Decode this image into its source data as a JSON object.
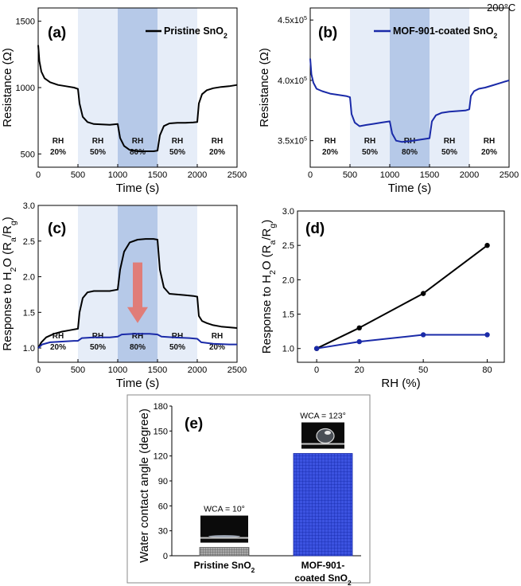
{
  "temperature_note": "200°C",
  "colors": {
    "pristine": "#000000",
    "mof": "#1a2aa8",
    "shade_light": "#e6edf8",
    "shade_dark": "#b6c9e8",
    "arrow": "#e07d78",
    "bar_pristine": "#7a7a7a",
    "bar_mof": "#1f33c9"
  },
  "chart_data": [
    {
      "id": "a",
      "panel_label": "(a)",
      "type": "line",
      "xlabel": "Time (s)",
      "ylabel": "Resistance (Ω)",
      "xlim": [
        0,
        2500
      ],
      "ylim": [
        400,
        1600
      ],
      "xticks": [
        0,
        500,
        1000,
        1500,
        2000,
        2500
      ],
      "yticks": [
        500,
        1000,
        1500
      ],
      "ytick_labels": [
        "500",
        "1000",
        "1500"
      ],
      "legend": "Pristine SnO2",
      "regions": [
        {
          "from": 0,
          "to": 500,
          "shade": "none",
          "label_top": "RH",
          "label_bottom": "20%"
        },
        {
          "from": 500,
          "to": 1000,
          "shade": "light",
          "label_top": "RH",
          "label_bottom": "50%"
        },
        {
          "from": 1000,
          "to": 1500,
          "shade": "dark",
          "label_top": "RH",
          "label_bottom": "80%"
        },
        {
          "from": 1500,
          "to": 2000,
          "shade": "light",
          "label_top": "RH",
          "label_bottom": "50%"
        },
        {
          "from": 2000,
          "to": 2500,
          "shade": "none",
          "label_top": "RH",
          "label_bottom": "20%"
        }
      ],
      "series": [
        {
          "name": "Pristine SnO2",
          "color": "#000000",
          "x": [
            0,
            15,
            40,
            80,
            150,
            250,
            350,
            450,
            500,
            520,
            560,
            620,
            700,
            800,
            900,
            1000,
            1030,
            1080,
            1150,
            1250,
            1350,
            1450,
            1500,
            1530,
            1580,
            1650,
            1750,
            1850,
            1950,
            2000,
            2020,
            2060,
            2120,
            2200,
            2300,
            2400,
            2500
          ],
          "y": [
            1320,
            1200,
            1120,
            1070,
            1040,
            1020,
            1010,
            1000,
            990,
            880,
            780,
            740,
            725,
            722,
            720,
            725,
            620,
            560,
            530,
            520,
            520,
            520,
            525,
            640,
            710,
            730,
            735,
            735,
            738,
            740,
            880,
            950,
            980,
            995,
            1005,
            1010,
            1020
          ]
        }
      ]
    },
    {
      "id": "b",
      "panel_label": "(b)",
      "type": "line",
      "xlabel": "Time (s)",
      "ylabel": "Resistance (Ω)",
      "xlim": [
        0,
        2500
      ],
      "ylim": [
        328000,
        460000
      ],
      "xticks": [
        0,
        500,
        1000,
        1500,
        2000,
        2500
      ],
      "yticks": [
        350000,
        400000,
        450000
      ],
      "ytick_labels": [
        "3.5x10⁵",
        "4.0x10⁵",
        "4.5x10⁵"
      ],
      "legend": "MOF-901-coated SnO2",
      "regions": [
        {
          "from": 0,
          "to": 500,
          "shade": "none",
          "label_top": "RH",
          "label_bottom": "20%"
        },
        {
          "from": 500,
          "to": 1000,
          "shade": "light",
          "label_top": "RH",
          "label_bottom": "50%"
        },
        {
          "from": 1000,
          "to": 1500,
          "shade": "dark",
          "label_top": "RH",
          "label_bottom": "80%"
        },
        {
          "from": 1500,
          "to": 2000,
          "shade": "light",
          "label_top": "RH",
          "label_bottom": "50%"
        },
        {
          "from": 2000,
          "to": 2500,
          "shade": "none",
          "label_top": "RH",
          "label_bottom": "20%"
        }
      ],
      "series": [
        {
          "name": "MOF-901-coated SnO2",
          "color": "#1a2aa8",
          "x": [
            0,
            15,
            40,
            80,
            150,
            250,
            350,
            450,
            500,
            520,
            560,
            620,
            700,
            800,
            900,
            1000,
            1030,
            1080,
            1150,
            1250,
            1350,
            1450,
            1500,
            1530,
            1580,
            1650,
            1750,
            1850,
            1950,
            2000,
            2020,
            2060,
            2120,
            2200,
            2300,
            2400,
            2500
          ],
          "y": [
            418000,
            405000,
            398000,
            393000,
            391000,
            389000,
            388000,
            387000,
            386000,
            372000,
            365000,
            362000,
            363000,
            364000,
            365000,
            366000,
            356000,
            350000,
            349000,
            349500,
            350500,
            351500,
            352000,
            366000,
            371000,
            373000,
            374000,
            374500,
            375000,
            376000,
            387000,
            391000,
            393000,
            394000,
            396000,
            398000,
            400000
          ]
        }
      ]
    },
    {
      "id": "c",
      "panel_label": "(c)",
      "type": "line",
      "xlabel": "Time (s)",
      "ylabel": "Response to H2O (Ra/Rg)",
      "xlim": [
        0,
        2500
      ],
      "ylim": [
        0.8,
        3.0
      ],
      "xticks": [
        0,
        500,
        1000,
        1500,
        2000,
        2500
      ],
      "yticks": [
        1.0,
        1.5,
        2.0,
        2.5,
        3.0
      ],
      "ytick_labels": [
        "1.0",
        "1.5",
        "2.0",
        "2.5",
        "3.0"
      ],
      "regions": [
        {
          "from": 0,
          "to": 500,
          "shade": "none",
          "label_top": "RH",
          "label_bottom": "20%"
        },
        {
          "from": 500,
          "to": 1000,
          "shade": "light",
          "label_top": "RH",
          "label_bottom": "50%"
        },
        {
          "from": 1000,
          "to": 1500,
          "shade": "dark",
          "label_top": "RH",
          "label_bottom": "80%"
        },
        {
          "from": 1500,
          "to": 2000,
          "shade": "light",
          "label_top": "RH",
          "label_bottom": "50%"
        },
        {
          "from": 2000,
          "to": 2500,
          "shade": "none",
          "label_top": "RH",
          "label_bottom": "20%"
        }
      ],
      "series": [
        {
          "name": "Pristine SnO2",
          "color": "#000000",
          "x": [
            0,
            40,
            100,
            200,
            300,
            400,
            500,
            520,
            560,
            620,
            700,
            800,
            900,
            1000,
            1030,
            1080,
            1150,
            1250,
            1350,
            1450,
            1500,
            1530,
            1580,
            1650,
            1750,
            1850,
            1950,
            2000,
            2020,
            2060,
            2120,
            2200,
            2300,
            2400,
            2500
          ],
          "y": [
            1.0,
            1.08,
            1.15,
            1.2,
            1.23,
            1.25,
            1.27,
            1.5,
            1.7,
            1.78,
            1.8,
            1.8,
            1.8,
            1.82,
            2.1,
            2.35,
            2.48,
            2.52,
            2.53,
            2.53,
            2.52,
            2.1,
            1.85,
            1.76,
            1.75,
            1.74,
            1.73,
            1.72,
            1.45,
            1.38,
            1.35,
            1.32,
            1.3,
            1.29,
            1.28
          ]
        },
        {
          "name": "MOF-901-coated SnO2",
          "color": "#1a2aa8",
          "x": [
            0,
            50,
            150,
            300,
            450,
            500,
            550,
            700,
            900,
            1000,
            1050,
            1200,
            1400,
            1500,
            1550,
            1700,
            1900,
            2000,
            2050,
            2200,
            2400,
            2500
          ],
          "y": [
            1.0,
            1.05,
            1.08,
            1.09,
            1.1,
            1.1,
            1.14,
            1.15,
            1.15,
            1.16,
            1.19,
            1.2,
            1.2,
            1.19,
            1.16,
            1.15,
            1.14,
            1.13,
            1.08,
            1.06,
            1.05,
            1.05
          ]
        }
      ],
      "annotation": "downward arrow"
    },
    {
      "id": "d",
      "panel_label": "(d)",
      "type": "line",
      "xlabel": "RH (%)",
      "ylabel": "Response to H2O (Ra/Rg)",
      "xlim": [
        -9,
        88
      ],
      "ylim": [
        0.8,
        3.0
      ],
      "xticks": [
        0,
        20,
        50,
        80
      ],
      "yticks": [
        1.0,
        1.5,
        2.0,
        2.5,
        3.0
      ],
      "ytick_labels": [
        "1.0",
        "1.5",
        "2.0",
        "2.5",
        "3.0"
      ],
      "series": [
        {
          "name": "Pristine SnO2",
          "color": "#000000",
          "x": [
            0,
            20,
            50,
            80
          ],
          "y": [
            1.0,
            1.3,
            1.8,
            2.5
          ]
        },
        {
          "name": "MOF-901-coated SnO2",
          "color": "#1a2aa8",
          "x": [
            0,
            20,
            50,
            80
          ],
          "y": [
            1.0,
            1.1,
            1.2,
            1.2
          ]
        }
      ]
    },
    {
      "id": "e",
      "panel_label": "(e)",
      "type": "bar",
      "ylabel": "Water contact angle (degree)",
      "ylim": [
        0,
        180
      ],
      "yticks": [
        0,
        30,
        60,
        90,
        120,
        150,
        180
      ],
      "categories": [
        {
          "line1": "Pristine SnO2",
          "line2": ""
        },
        {
          "line1": "MOF-901-",
          "line2": "coated SnO2"
        }
      ],
      "values": [
        10,
        123
      ],
      "wca_labels": [
        "WCA = 10°",
        "WCA = 123°"
      ]
    }
  ]
}
